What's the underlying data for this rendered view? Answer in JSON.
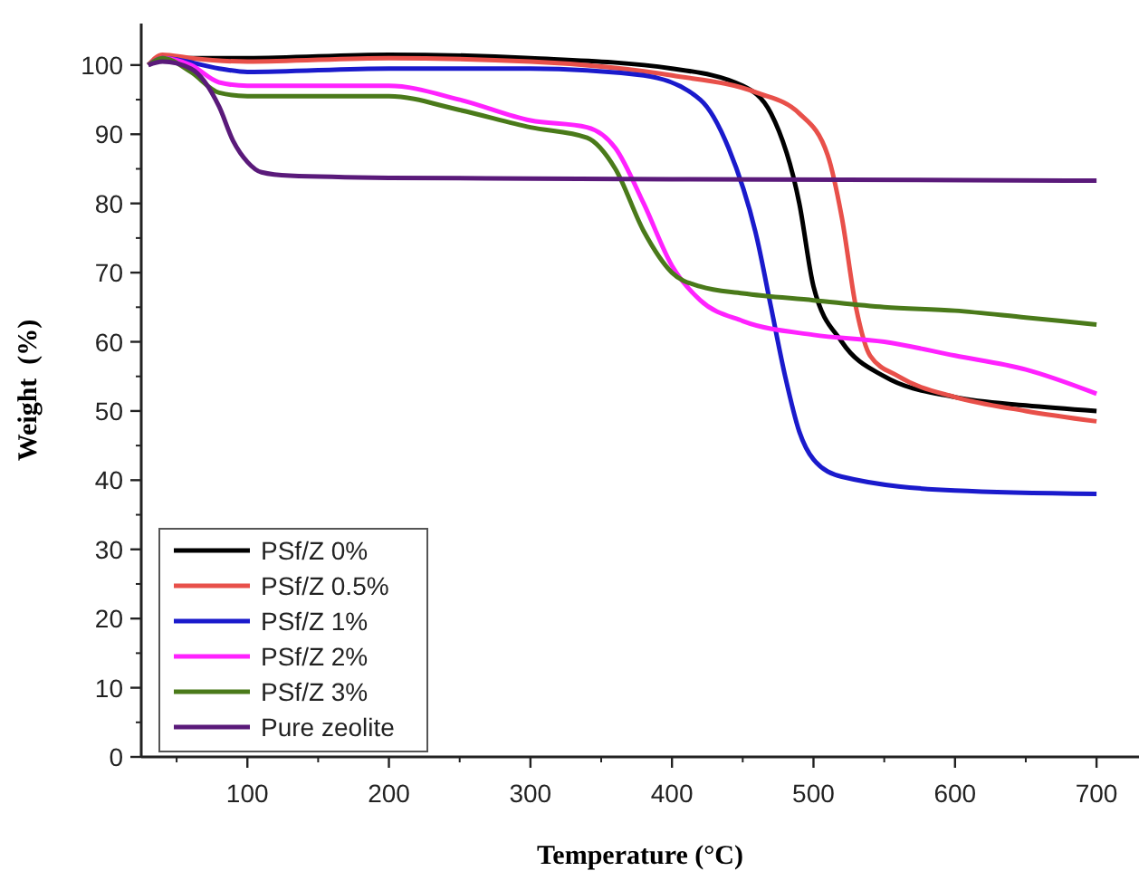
{
  "chart_data": {
    "type": "line",
    "xlabel": "Temperature (°C)",
    "ylabel": "Weight  (%)",
    "xlim": [
      25,
      730
    ],
    "ylim": [
      0,
      106
    ],
    "xticks": [
      100,
      200,
      300,
      400,
      500,
      600,
      700
    ],
    "yticks": [
      0,
      10,
      20,
      30,
      40,
      50,
      60,
      70,
      80,
      90,
      100
    ],
    "grid": false,
    "legend": "bottom left",
    "marker": "none",
    "line_style": "solid",
    "series": [
      {
        "name": "PSf/Z 0%",
        "color": "#000000",
        "x": [
          30,
          40,
          100,
          200,
          300,
          400,
          450,
          470,
          490,
          500,
          520,
          550,
          600,
          650,
          700
        ],
        "values": [
          100,
          101,
          101,
          101.5,
          101,
          99.5,
          97,
          93,
          80,
          68,
          60,
          55,
          52,
          50.8,
          50
        ]
      },
      {
        "name": "PSf/Z 0.5%",
        "color": "#e8504a",
        "x": [
          30,
          40,
          60,
          100,
          200,
          300,
          400,
          460,
          490,
          510,
          520,
          530,
          540,
          560,
          600,
          650,
          700
        ],
        "values": [
          100,
          101.5,
          101,
          100.5,
          101,
          100.5,
          98.5,
          96,
          93,
          87,
          78,
          65,
          58,
          55,
          52,
          50,
          48.5
        ]
      },
      {
        "name": "PSf/Z 1%",
        "color": "#1a1acc",
        "x": [
          30,
          40,
          80,
          100,
          200,
          300,
          380,
          420,
          440,
          460,
          470,
          480,
          490,
          500,
          520,
          600,
          700
        ],
        "values": [
          100,
          101,
          99.5,
          99,
          99.5,
          99.5,
          98.5,
          95,
          88,
          75,
          65,
          55,
          47,
          43,
          40.5,
          38.5,
          38
        ]
      },
      {
        "name": "PSf/Z 2%",
        "color": "#ff22ff",
        "x": [
          30,
          40,
          60,
          80,
          100,
          200,
          250,
          300,
          340,
          360,
          380,
          400,
          420,
          450,
          500,
          550,
          600,
          650,
          700
        ],
        "values": [
          100,
          101,
          100,
          97.5,
          97,
          97,
          95,
          92,
          91,
          88,
          80,
          71,
          66,
          63,
          61,
          60,
          58,
          56,
          52.5
        ]
      },
      {
        "name": "PSf/Z 3%",
        "color": "#4a7a1a",
        "x": [
          30,
          40,
          60,
          80,
          100,
          200,
          250,
          300,
          340,
          360,
          380,
          400,
          420,
          450,
          500,
          550,
          600,
          650,
          700
        ],
        "values": [
          100,
          101,
          99,
          96,
          95.5,
          95.5,
          93.5,
          91,
          89.5,
          85,
          76,
          70,
          68,
          67,
          66,
          65,
          64.5,
          63.5,
          62.5
        ]
      },
      {
        "name": "Pure zeolite",
        "color": "#5a1a7a",
        "x": [
          30,
          40,
          60,
          80,
          90,
          100,
          110,
          130,
          200,
          300,
          400,
          700
        ],
        "values": [
          100,
          100.5,
          99.5,
          94,
          89,
          86,
          84.5,
          84,
          83.7,
          83.6,
          83.5,
          83.3
        ]
      }
    ]
  }
}
